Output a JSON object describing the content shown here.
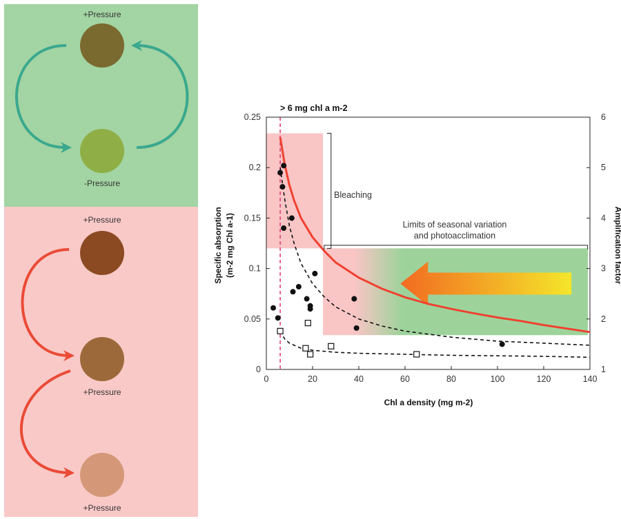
{
  "colors": {
    "green_panel": "#a3d4a3",
    "red_panel": "#f9c9c7",
    "teal_arrow": "#3aa88e",
    "red_arrow": "#ea4a36",
    "circle_dark_olive": "#7a6a30",
    "circle_light_olive": "#8fae45",
    "circle_dark_brown": "#8b4a22",
    "circle_mid_brown": "#9c6a3a",
    "circle_light_brown": "#d49878",
    "red_curve": "#ef4130",
    "dashed_line": "#e33d7a",
    "green_region": "#9dd39b",
    "pink_region": "#f9c5c5",
    "big_arrow_start": "#f26b21",
    "big_arrow_end": "#f4e62a"
  },
  "diagram": {
    "top_panel": {
      "top_label": "+Pressure",
      "bottom_label": "-Pressure"
    },
    "bottom_panel": {
      "labels": [
        "+Pressure",
        "+Pressure",
        "+Pressure"
      ]
    }
  },
  "chart_data": {
    "type": "scatter",
    "title": "> 6 mg chl a m-2",
    "xlabel": "Chl a density (mg m-2)",
    "ylabel_line1": "Specific absorption",
    "ylabel_line2": "(m-2 mg Chl a-1)",
    "y2label": "Amplification factor",
    "xlim": [
      0,
      140
    ],
    "ylim": [
      0,
      0.25
    ],
    "y2lim": [
      1,
      6
    ],
    "x_ticks": [
      0,
      20,
      40,
      60,
      80,
      100,
      120,
      140
    ],
    "y_ticks": [
      0,
      0.05,
      0.1,
      0.15,
      0.2,
      0.25
    ],
    "y_tick_labels": [
      "0",
      "0.05",
      "0.1",
      "0.15",
      "0.2",
      "0.25"
    ],
    "y2_ticks": [
      1,
      2,
      3,
      4,
      5,
      6
    ],
    "threshold_x": 6,
    "annotations": {
      "bleaching": "Bleaching",
      "limits_line1": "Limits of seasonal variation",
      "limits_line2": "and photoacclimation"
    },
    "regions": {
      "bleaching_box": {
        "x": [
          0,
          24.5
        ],
        "y": [
          0.12,
          0.234
        ]
      },
      "seasonal_box": {
        "x": [
          24.5,
          140
        ],
        "y": [
          0.034,
          0.12
        ]
      }
    },
    "brackets": {
      "bleaching": {
        "x": 28,
        "y": [
          0.12,
          0.234
        ]
      },
      "limits": {
        "x": [
          25,
          139
        ],
        "y": 0.123
      }
    },
    "big_arrow": {
      "x_tail": 132,
      "x_head": 58,
      "y": 0.085
    },
    "series": [
      {
        "marker": "filled-circle",
        "points": [
          [
            3,
            0.061
          ],
          [
            5,
            0.051
          ],
          [
            6,
            0.195
          ],
          [
            7,
            0.181
          ],
          [
            7.5,
            0.202
          ],
          [
            7.5,
            0.14
          ],
          [
            11,
            0.15
          ],
          [
            11.5,
            0.077
          ],
          [
            14,
            0.082
          ],
          [
            17.5,
            0.07
          ],
          [
            19,
            0.063
          ],
          [
            19,
            0.06
          ],
          [
            21,
            0.095
          ],
          [
            38,
            0.07
          ],
          [
            39,
            0.041
          ],
          [
            102,
            0.025
          ]
        ]
      },
      {
        "marker": "open-square",
        "points": [
          [
            6,
            0.038
          ],
          [
            17,
            0.021
          ],
          [
            18,
            0.046
          ],
          [
            19,
            0.015
          ],
          [
            28,
            0.023
          ],
          [
            65,
            0.015
          ]
        ]
      },
      {
        "marker": "red-curve",
        "axis": "y2",
        "points": [
          [
            6,
            5.6
          ],
          [
            8,
            5.05
          ],
          [
            10,
            4.65
          ],
          [
            12,
            4.35
          ],
          [
            15,
            4.0
          ],
          [
            20,
            3.62
          ],
          [
            25,
            3.35
          ],
          [
            30,
            3.12
          ],
          [
            40,
            2.82
          ],
          [
            50,
            2.6
          ],
          [
            60,
            2.43
          ],
          [
            70,
            2.3
          ],
          [
            80,
            2.2
          ],
          [
            90,
            2.11
          ],
          [
            100,
            2.03
          ],
          [
            110,
            1.96
          ],
          [
            120,
            1.88
          ],
          [
            130,
            1.81
          ],
          [
            140,
            1.74
          ]
        ]
      },
      {
        "marker": "dashed-fit",
        "points": [
          [
            6,
            0.2
          ],
          [
            8,
            0.168
          ],
          [
            10,
            0.142
          ],
          [
            12,
            0.125
          ],
          [
            15,
            0.105
          ],
          [
            20,
            0.085
          ],
          [
            25,
            0.072
          ],
          [
            30,
            0.062
          ],
          [
            40,
            0.05
          ],
          [
            50,
            0.043
          ],
          [
            60,
            0.038
          ],
          [
            80,
            0.032
          ],
          [
            100,
            0.028
          ],
          [
            120,
            0.026
          ],
          [
            140,
            0.024
          ]
        ]
      },
      {
        "marker": "dashed-fit",
        "points": [
          [
            6,
            0.038
          ],
          [
            8,
            0.03
          ],
          [
            10,
            0.026
          ],
          [
            15,
            0.021
          ],
          [
            20,
            0.019
          ],
          [
            30,
            0.017
          ],
          [
            40,
            0.016
          ],
          [
            60,
            0.015
          ],
          [
            80,
            0.014
          ],
          [
            100,
            0.0135
          ],
          [
            120,
            0.013
          ],
          [
            140,
            0.012
          ]
        ]
      }
    ]
  }
}
